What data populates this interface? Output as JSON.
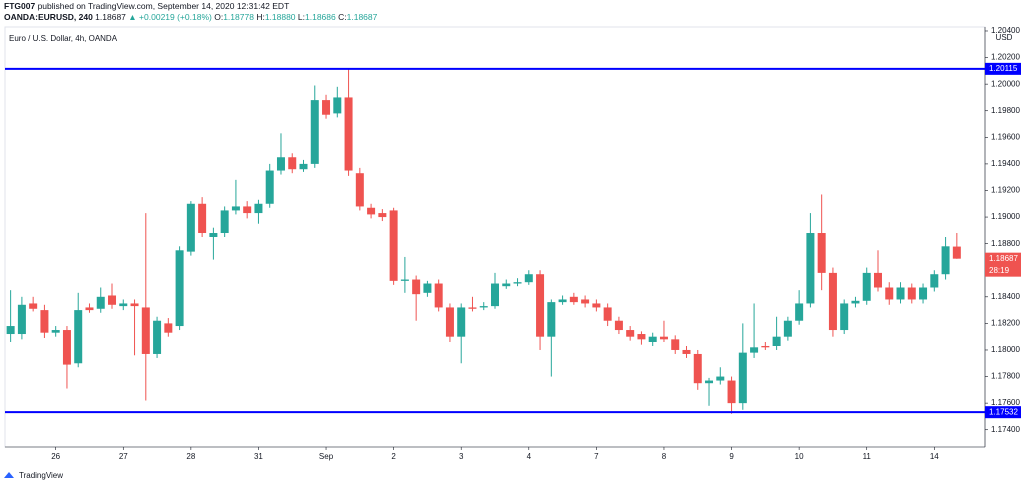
{
  "header": {
    "author": "FTG007",
    "published": "published on TradingView.com, September 14, 2020 12:31:42 EDT",
    "symbol": "OANDA:EURUSD, 240",
    "last": "1.18687",
    "change": "▲ +0.00219 (+0.18%)",
    "ohlc": [
      {
        "k": "O:",
        "v": "1.18778"
      },
      {
        "k": "H:",
        "v": "1.18880"
      },
      {
        "k": "L:",
        "v": "1.18686"
      },
      {
        "k": "C:",
        "v": "1.18687"
      }
    ]
  },
  "chart_data": {
    "type": "candlestick",
    "title": "Euro / U.S. Dollar, 4h, OANDA",
    "currency": "USD",
    "countdown": "28:19",
    "up_color": "#26a69a",
    "down_color": "#ef5350",
    "line_color": "#0000ff",
    "categories": [
      null,
      null,
      null,
      null,
      "26",
      null,
      null,
      null,
      null,
      null,
      "27",
      null,
      null,
      null,
      null,
      null,
      "28",
      null,
      null,
      null,
      null,
      null,
      "31",
      null,
      null,
      null,
      null,
      null,
      "Sep",
      null,
      null,
      null,
      null,
      null,
      "2",
      null,
      null,
      null,
      null,
      null,
      "3",
      null,
      null,
      null,
      null,
      null,
      "4",
      null,
      null,
      null,
      null,
      null,
      "7",
      null,
      null,
      null,
      null,
      null,
      "8",
      null,
      null,
      null,
      null,
      null,
      "9",
      null,
      null,
      null,
      null,
      null,
      "10",
      null,
      null,
      null,
      null,
      null,
      "11",
      null,
      null,
      null,
      null,
      null,
      "14",
      null,
      null
    ],
    "open": [
      1.1812,
      1.1812,
      1.1835,
      1.183,
      1.1813,
      1.1815,
      1.179,
      1.1832,
      1.1831,
      1.1841,
      1.1833,
      1.1835,
      1.1832,
      1.1797,
      1.182,
      1.1818,
      1.1874,
      1.191,
      1.1885,
      1.1888,
      1.1905,
      1.1908,
      1.1903,
      1.191,
      1.1935,
      1.1945,
      1.1936,
      1.194,
      1.1988,
      1.1978,
      1.199,
      1.1933,
      1.1907,
      1.1903,
      1.1905,
      1.1852,
      1.1853,
      1.1843,
      1.185,
      1.1832,
      1.181,
      1.1832,
      1.1832,
      1.1833,
      1.1848,
      1.185,
      1.1851,
      1.1857,
      1.181,
      1.1836,
      1.184,
      1.1838,
      1.1835,
      1.1832,
      1.1822,
      1.1815,
      1.1812,
      1.1806,
      1.181,
      1.1808,
      1.18,
      1.1797,
      1.1775,
      1.1777,
      1.1777,
      1.176,
      1.1798,
      1.1803,
      1.1803,
      1.181,
      1.1822,
      1.1835,
      1.1888,
      1.1858,
      1.1815,
      1.1835,
      1.1837,
      1.1858,
      1.1847,
      1.1838,
      1.1847,
      1.1838,
      1.1847,
      1.1857,
      1.18778
    ],
    "high": [
      1.1845,
      1.184,
      1.184,
      1.1834,
      1.1818,
      1.1818,
      1.1843,
      1.1835,
      1.1847,
      1.185,
      1.1838,
      1.1838,
      1.1903,
      1.1825,
      1.1824,
      1.1878,
      1.1912,
      1.1915,
      1.1892,
      1.1908,
      1.1928,
      1.1912,
      1.1913,
      1.194,
      1.1963,
      1.1948,
      1.1943,
      1.1999,
      1.1992,
      1.1998,
      1.2011,
      1.1937,
      1.191,
      1.1906,
      1.1907,
      1.187,
      1.1856,
      1.1852,
      1.1853,
      1.1835,
      1.1835,
      1.184,
      1.1836,
      1.1858,
      1.1853,
      1.1854,
      1.186,
      1.186,
      1.1838,
      1.1841,
      1.1843,
      1.1841,
      1.1838,
      1.1835,
      1.1825,
      1.1818,
      1.1814,
      1.1813,
      1.1822,
      1.1811,
      1.1803,
      1.18,
      1.1779,
      1.1787,
      1.178,
      1.182,
      1.1835,
      1.1806,
      1.1825,
      1.1825,
      1.1845,
      1.1903,
      1.1917,
      1.1862,
      1.1838,
      1.184,
      1.1862,
      1.1875,
      1.1851,
      1.1851,
      1.185,
      1.185,
      1.186,
      1.1885,
      1.1888
    ],
    "low": [
      1.1806,
      1.1808,
      1.1829,
      1.1809,
      1.181,
      1.1771,
      1.1787,
      1.1828,
      1.1828,
      1.1831,
      1.183,
      1.1796,
      1.1762,
      1.1794,
      1.181,
      1.1815,
      1.1871,
      1.1885,
      1.1868,
      1.1885,
      1.1902,
      1.1899,
      1.1895,
      1.1907,
      1.1932,
      1.1933,
      1.1934,
      1.1937,
      1.1974,
      1.1975,
      1.1931,
      1.1905,
      1.1899,
      1.1897,
      1.1849,
      1.1843,
      1.1822,
      1.184,
      1.1829,
      1.1806,
      1.179,
      1.1829,
      1.183,
      1.1831,
      1.1846,
      1.1848,
      1.1849,
      1.18,
      1.178,
      1.1834,
      1.1834,
      1.1832,
      1.1829,
      1.1818,
      1.1812,
      1.1807,
      1.1804,
      1.1803,
      1.1806,
      1.1797,
      1.1794,
      1.177,
      1.1758,
      1.1774,
      1.1752,
      1.1755,
      1.1794,
      1.18,
      1.18,
      1.1807,
      1.1819,
      1.1832,
      1.1845,
      1.181,
      1.1812,
      1.1832,
      1.1834,
      1.1844,
      1.1834,
      1.1835,
      1.1835,
      1.1835,
      1.1844,
      1.1853,
      1.18686
    ],
    "close": [
      1.1818,
      1.1834,
      1.1831,
      1.1813,
      1.1815,
      1.1789,
      1.183,
      1.183,
      1.184,
      1.1834,
      1.1835,
      1.1833,
      1.1797,
      1.1822,
      1.1813,
      1.1875,
      1.191,
      1.1888,
      1.1888,
      1.1905,
      1.1908,
      1.1903,
      1.191,
      1.1935,
      1.1945,
      1.1936,
      1.194,
      1.1988,
      1.1977,
      1.199,
      1.1935,
      1.1908,
      1.1902,
      1.19,
      1.1852,
      1.1853,
      1.1842,
      1.185,
      1.1832,
      1.181,
      1.1832,
      1.1831,
      1.1833,
      1.185,
      1.185,
      1.1851,
      1.1857,
      1.181,
      1.1836,
      1.1838,
      1.1836,
      1.1835,
      1.1832,
      1.1822,
      1.1815,
      1.181,
      1.1808,
      1.181,
      1.1808,
      1.18,
      1.1797,
      1.1775,
      1.1777,
      1.178,
      1.176,
      1.1798,
      1.1802,
      1.1802,
      1.181,
      1.1822,
      1.1835,
      1.1888,
      1.1858,
      1.1815,
      1.1835,
      1.1837,
      1.1858,
      1.1847,
      1.1838,
      1.1847,
      1.1838,
      1.1847,
      1.1857,
      1.1878,
      1.18687
    ],
    "hlines": [
      1.20115,
      1.17532
    ],
    "ylim": [
      1.1727,
      1.2043
    ],
    "yticks": [
      {
        "value": 1.174,
        "label": "1.17400"
      },
      {
        "value": 1.176,
        "label": "1.17600"
      },
      {
        "value": 1.178,
        "label": "1.17800"
      },
      {
        "value": 1.18,
        "label": "1.18000"
      },
      {
        "value": 1.182,
        "label": "1.18200"
      },
      {
        "value": 1.184,
        "label": "1.18400"
      },
      {
        "value": 1.186,
        "label": "1.18600"
      },
      {
        "value": 1.188,
        "label": "1.18800"
      },
      {
        "value": 1.19,
        "label": "1.19000"
      },
      {
        "value": 1.192,
        "label": "1.19200"
      },
      {
        "value": 1.194,
        "label": "1.19400"
      },
      {
        "value": 1.196,
        "label": "1.19600"
      },
      {
        "value": 1.198,
        "label": "1.19800"
      },
      {
        "value": 1.2,
        "label": "1.20000"
      },
      {
        "value": 1.202,
        "label": "1.20200"
      },
      {
        "value": 1.204,
        "label": "1.20400"
      }
    ]
  },
  "footer": "TradingView"
}
